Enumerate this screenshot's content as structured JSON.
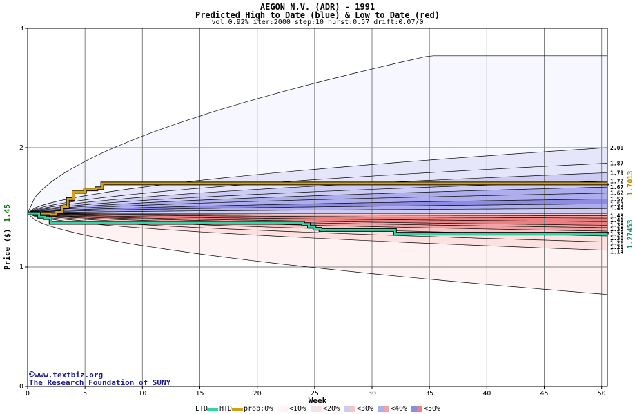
{
  "chart_data": {
    "type": "area",
    "title": "AEGON N.V. (ADR) - 1991",
    "subtitle": "Predicted High to Date (blue) &  Low to Date (red)",
    "params": "vol:0.92% iter:2000 step:10 hurst:0.57 drift:0.07/0",
    "xlabel": "Week",
    "ylabel": "Price ($)",
    "xlim": [
      0,
      50.5
    ],
    "ylim": [
      0,
      3
    ],
    "x_ticks": [
      0,
      5,
      10,
      15,
      20,
      25,
      30,
      35,
      40,
      45,
      50
    ],
    "y_ticks": [
      0,
      1,
      2,
      3
    ],
    "start_price": 1.45,
    "start_price_label": "1.45",
    "grid": true,
    "final_labels": [
      "2.00",
      "1.87",
      "1.79",
      "1.72",
      "1.67",
      "1.62",
      "1.57",
      "1.53",
      "1.49",
      "1.43",
      "1.41",
      "1.38",
      "1.35",
      "1.33",
      "1.30",
      "1.26",
      "1.21",
      "1.14"
    ],
    "high_band_finals": [
      2.77,
      2.0,
      1.87,
      1.79,
      1.72,
      1.67,
      1.62,
      1.57,
      1.53,
      1.49,
      1.45
    ],
    "low_band_finals": [
      1.45,
      1.43,
      1.41,
      1.38,
      1.35,
      1.33,
      1.3,
      1.26,
      1.21,
      1.14,
      0.77
    ],
    "high_to_date": {
      "name": "HTD",
      "color": "#d4a017",
      "final_label": "1.7013",
      "x": [
        0,
        2,
        2.5,
        3,
        3.5,
        4,
        5,
        6,
        6.5,
        10,
        25,
        50.5
      ],
      "y": [
        1.45,
        1.44,
        1.46,
        1.5,
        1.57,
        1.63,
        1.65,
        1.66,
        1.7,
        1.7,
        1.7,
        1.7013
      ]
    },
    "low_to_date": {
      "name": "LTD",
      "color": "#2fd5a5",
      "final_label": "1.27453",
      "x": [
        0,
        1,
        1.5,
        2,
        10,
        24,
        24.5,
        25,
        25.5,
        31.5,
        32,
        50.5
      ],
      "y": [
        1.45,
        1.42,
        1.41,
        1.37,
        1.37,
        1.36,
        1.34,
        1.32,
        1.31,
        1.31,
        1.28,
        1.27453
      ]
    }
  },
  "watermark": {
    "line1": "www.textbiz.org",
    "line2": "The Research Foundation of SUNY",
    "copyright_symbol": "©"
  },
  "legend": {
    "ltd": "LTD",
    "htd": "HTD",
    "prob_label": "prob:0%",
    "prob_items": [
      "<10%",
      "<20%",
      "<30%",
      "<40%",
      "<50%"
    ],
    "ltd_color": "#2fd5a5",
    "htd_color": "#d4a017",
    "prob_blue_colors": [
      "#f7f7ff",
      "#e6e6fb",
      "#ccccf5",
      "#aeaeee",
      "#8c8ce6"
    ],
    "prob_red_colors": [
      "#fff2f2",
      "#fde0e0",
      "#f9c4c4",
      "#f3a3a3",
      "#ec8080"
    ]
  }
}
